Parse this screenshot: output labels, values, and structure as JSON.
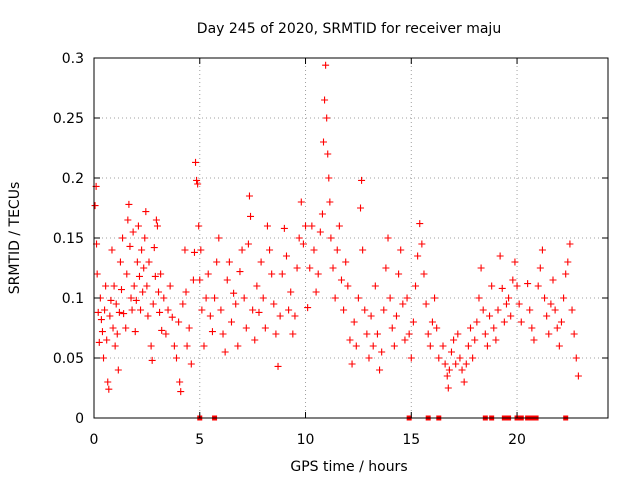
{
  "chart_data": {
    "type": "scatter",
    "title": "Day 245 of 2020, SRMTID for receiver maju",
    "xlabel": "GPS time / hours",
    "ylabel": "SRMTID / TECUs",
    "xlim": [
      0,
      24.3
    ],
    "ylim": [
      0,
      0.3
    ],
    "x_ticks": [
      0,
      5,
      10,
      15,
      20
    ],
    "x_tick_labels": [
      "0",
      "5",
      "10",
      "15",
      "20"
    ],
    "y_ticks": [
      0,
      0.05,
      0.1,
      0.15,
      0.2,
      0.25,
      0.3
    ],
    "y_tick_labels": [
      "0",
      "0.05",
      "0.1",
      "0.15",
      "0.2",
      "0.25",
      "0.3"
    ],
    "grid": true,
    "marker": "plus",
    "series_color": "#ff0000",
    "series": [
      {
        "name": "SRMTID",
        "points": [
          [
            0.05,
            0.177
          ],
          [
            0.1,
            0.193
          ],
          [
            0.12,
            0.145
          ],
          [
            0.15,
            0.12
          ],
          [
            0.2,
            0.088
          ],
          [
            0.25,
            0.063
          ],
          [
            0.3,
            0.1
          ],
          [
            0.35,
            0.082
          ],
          [
            0.4,
            0.072
          ],
          [
            0.45,
            0.05
          ],
          [
            0.5,
            0.09
          ],
          [
            0.55,
            0.11
          ],
          [
            0.6,
            0.065
          ],
          [
            0.65,
            0.03
          ],
          [
            0.7,
            0.024
          ],
          [
            0.75,
            0.085
          ],
          [
            0.8,
            0.098
          ],
          [
            0.85,
            0.14
          ],
          [
            0.9,
            0.075
          ],
          [
            0.95,
            0.11
          ],
          [
            1.0,
            0.06
          ],
          [
            1.05,
            0.095
          ],
          [
            1.1,
            0.07
          ],
          [
            1.15,
            0.04
          ],
          [
            1.2,
            0.088
          ],
          [
            1.25,
            0.13
          ],
          [
            1.3,
            0.107
          ],
          [
            1.35,
            0.15
          ],
          [
            1.4,
            0.087
          ],
          [
            1.5,
            0.075
          ],
          [
            1.55,
            0.12
          ],
          [
            1.6,
            0.165
          ],
          [
            1.65,
            0.178
          ],
          [
            1.7,
            0.143
          ],
          [
            1.75,
            0.1
          ],
          [
            1.8,
            0.09
          ],
          [
            1.85,
            0.155
          ],
          [
            1.9,
            0.11
          ],
          [
            1.95,
            0.072
          ],
          [
            2.0,
            0.098
          ],
          [
            2.05,
            0.13
          ],
          [
            2.1,
            0.16
          ],
          [
            2.15,
            0.118
          ],
          [
            2.2,
            0.09
          ],
          [
            2.25,
            0.14
          ],
          [
            2.3,
            0.105
          ],
          [
            2.35,
            0.125
          ],
          [
            2.4,
            0.15
          ],
          [
            2.45,
            0.172
          ],
          [
            2.5,
            0.11
          ],
          [
            2.55,
            0.085
          ],
          [
            2.6,
            0.13
          ],
          [
            2.7,
            0.06
          ],
          [
            2.75,
            0.048
          ],
          [
            2.8,
            0.095
          ],
          [
            2.85,
            0.142
          ],
          [
            2.9,
            0.118
          ],
          [
            2.95,
            0.165
          ],
          [
            3.0,
            0.16
          ],
          [
            3.05,
            0.105
          ],
          [
            3.1,
            0.088
          ],
          [
            3.15,
            0.12
          ],
          [
            3.2,
            0.073
          ],
          [
            3.3,
            0.1
          ],
          [
            3.4,
            0.07
          ],
          [
            3.5,
            0.09
          ],
          [
            3.6,
            0.11
          ],
          [
            3.7,
            0.084
          ],
          [
            3.8,
            0.06
          ],
          [
            3.9,
            0.05
          ],
          [
            4.0,
            0.08
          ],
          [
            4.05,
            0.03
          ],
          [
            4.1,
            0.022
          ],
          [
            4.2,
            0.095
          ],
          [
            4.3,
            0.14
          ],
          [
            4.35,
            0.105
          ],
          [
            4.4,
            0.06
          ],
          [
            4.5,
            0.075
          ],
          [
            4.6,
            0.045
          ],
          [
            4.7,
            0.115
          ],
          [
            4.75,
            0.138
          ],
          [
            4.8,
            0.213
          ],
          [
            4.85,
            0.198
          ],
          [
            4.9,
            0.195
          ],
          [
            4.95,
            0.16
          ],
          [
            5.0,
            0.115
          ],
          [
            5.05,
            0.14
          ],
          [
            5.1,
            0.09
          ],
          [
            5.2,
            0.06
          ],
          [
            5.3,
            0.1
          ],
          [
            5.4,
            0.12
          ],
          [
            5.5,
            0.085
          ],
          [
            5.6,
            0.072
          ],
          [
            5.7,
            0.1
          ],
          [
            5.8,
            0.13
          ],
          [
            5.9,
            0.15
          ],
          [
            6.0,
            0.09
          ],
          [
            6.1,
            0.07
          ],
          [
            6.2,
            0.055
          ],
          [
            6.3,
            0.115
          ],
          [
            6.4,
            0.13
          ],
          [
            6.5,
            0.08
          ],
          [
            6.6,
            0.104
          ],
          [
            6.7,
            0.095
          ],
          [
            6.8,
            0.06
          ],
          [
            6.9,
            0.122
          ],
          [
            7.0,
            0.14
          ],
          [
            7.1,
            0.1
          ],
          [
            7.2,
            0.075
          ],
          [
            7.3,
            0.145
          ],
          [
            7.35,
            0.185
          ],
          [
            7.4,
            0.168
          ],
          [
            7.5,
            0.09
          ],
          [
            7.6,
            0.065
          ],
          [
            7.7,
            0.11
          ],
          [
            7.8,
            0.088
          ],
          [
            7.9,
            0.13
          ],
          [
            8.0,
            0.1
          ],
          [
            8.1,
            0.075
          ],
          [
            8.2,
            0.16
          ],
          [
            8.3,
            0.14
          ],
          [
            8.4,
            0.12
          ],
          [
            8.5,
            0.095
          ],
          [
            8.6,
            0.07
          ],
          [
            8.7,
            0.043
          ],
          [
            8.8,
            0.085
          ],
          [
            8.9,
            0.12
          ],
          [
            9.0,
            0.158
          ],
          [
            9.1,
            0.135
          ],
          [
            9.2,
            0.09
          ],
          [
            9.3,
            0.105
          ],
          [
            9.4,
            0.07
          ],
          [
            9.5,
            0.085
          ],
          [
            9.6,
            0.125
          ],
          [
            9.7,
            0.15
          ],
          [
            9.8,
            0.18
          ],
          [
            9.9,
            0.145
          ],
          [
            10.0,
            0.16
          ],
          [
            10.1,
            0.092
          ],
          [
            10.2,
            0.125
          ],
          [
            10.3,
            0.16
          ],
          [
            10.4,
            0.14
          ],
          [
            10.5,
            0.105
          ],
          [
            10.6,
            0.12
          ],
          [
            10.7,
            0.155
          ],
          [
            10.8,
            0.17
          ],
          [
            10.85,
            0.23
          ],
          [
            10.9,
            0.265
          ],
          [
            10.95,
            0.294
          ],
          [
            11.0,
            0.25
          ],
          [
            11.05,
            0.22
          ],
          [
            11.1,
            0.2
          ],
          [
            11.15,
            0.18
          ],
          [
            11.2,
            0.15
          ],
          [
            11.3,
            0.125
          ],
          [
            11.4,
            0.1
          ],
          [
            11.5,
            0.14
          ],
          [
            11.6,
            0.16
          ],
          [
            11.7,
            0.115
          ],
          [
            11.8,
            0.09
          ],
          [
            11.9,
            0.13
          ],
          [
            12.0,
            0.11
          ],
          [
            12.1,
            0.065
          ],
          [
            12.2,
            0.045
          ],
          [
            12.3,
            0.08
          ],
          [
            12.4,
            0.06
          ],
          [
            12.5,
            0.1
          ],
          [
            12.6,
            0.175
          ],
          [
            12.65,
            0.198
          ],
          [
            12.7,
            0.14
          ],
          [
            12.8,
            0.09
          ],
          [
            12.9,
            0.07
          ],
          [
            13.0,
            0.05
          ],
          [
            13.1,
            0.085
          ],
          [
            13.2,
            0.06
          ],
          [
            13.3,
            0.11
          ],
          [
            13.4,
            0.07
          ],
          [
            13.5,
            0.04
          ],
          [
            13.6,
            0.055
          ],
          [
            13.7,
            0.09
          ],
          [
            13.8,
            0.125
          ],
          [
            13.9,
            0.15
          ],
          [
            14.0,
            0.1
          ],
          [
            14.1,
            0.075
          ],
          [
            14.2,
            0.06
          ],
          [
            14.3,
            0.085
          ],
          [
            14.4,
            0.12
          ],
          [
            14.5,
            0.14
          ],
          [
            14.6,
            0.095
          ],
          [
            14.7,
            0.065
          ],
          [
            14.8,
            0.1
          ],
          [
            14.9,
            0.07
          ],
          [
            15.0,
            0.05
          ],
          [
            15.1,
            0.08
          ],
          [
            15.2,
            0.11
          ],
          [
            15.3,
            0.135
          ],
          [
            15.4,
            0.162
          ],
          [
            15.5,
            0.145
          ],
          [
            15.6,
            0.12
          ],
          [
            15.7,
            0.095
          ],
          [
            15.8,
            0.07
          ],
          [
            15.9,
            0.06
          ],
          [
            16.0,
            0.08
          ],
          [
            16.1,
            0.1
          ],
          [
            16.2,
            0.075
          ],
          [
            16.3,
            0.05
          ],
          [
            16.5,
            0.06
          ],
          [
            16.6,
            0.045
          ],
          [
            16.7,
            0.035
          ],
          [
            16.75,
            0.025
          ],
          [
            16.8,
            0.04
          ],
          [
            16.9,
            0.055
          ],
          [
            17.0,
            0.065
          ],
          [
            17.1,
            0.045
          ],
          [
            17.2,
            0.07
          ],
          [
            17.3,
            0.05
          ],
          [
            17.4,
            0.04
          ],
          [
            17.5,
            0.03
          ],
          [
            17.6,
            0.045
          ],
          [
            17.7,
            0.06
          ],
          [
            17.8,
            0.075
          ],
          [
            17.9,
            0.05
          ],
          [
            18.0,
            0.065
          ],
          [
            18.1,
            0.08
          ],
          [
            18.2,
            0.1
          ],
          [
            18.3,
            0.125
          ],
          [
            18.4,
            0.09
          ],
          [
            18.5,
            0.07
          ],
          [
            18.6,
            0.06
          ],
          [
            18.7,
            0.085
          ],
          [
            18.8,
            0.11
          ],
          [
            18.9,
            0.075
          ],
          [
            19.0,
            0.065
          ],
          [
            19.1,
            0.09
          ],
          [
            19.2,
            0.135
          ],
          [
            19.3,
            0.108
          ],
          [
            19.4,
            0.08
          ],
          [
            19.5,
            0.095
          ],
          [
            19.6,
            0.1
          ],
          [
            19.7,
            0.085
          ],
          [
            19.8,
            0.115
          ],
          [
            19.9,
            0.13
          ],
          [
            20.0,
            0.11
          ],
          [
            20.1,
            0.095
          ],
          [
            20.2,
            0.08
          ],
          [
            20.5,
            0.112
          ],
          [
            20.6,
            0.09
          ],
          [
            20.7,
            0.075
          ],
          [
            20.8,
            0.065
          ],
          [
            21.0,
            0.11
          ],
          [
            21.1,
            0.125
          ],
          [
            21.2,
            0.14
          ],
          [
            21.3,
            0.1
          ],
          [
            21.4,
            0.085
          ],
          [
            21.5,
            0.07
          ],
          [
            21.6,
            0.095
          ],
          [
            21.7,
            0.115
          ],
          [
            21.8,
            0.09
          ],
          [
            21.9,
            0.075
          ],
          [
            22.0,
            0.06
          ],
          [
            22.1,
            0.08
          ],
          [
            22.2,
            0.1
          ],
          [
            22.3,
            0.12
          ],
          [
            22.4,
            0.13
          ],
          [
            22.5,
            0.145
          ],
          [
            22.6,
            0.09
          ],
          [
            22.7,
            0.07
          ],
          [
            22.8,
            0.05
          ],
          [
            22.9,
            0.035
          ]
        ]
      }
    ],
    "zero_markers_x": [
      5.0,
      5.7,
      14.9,
      15.8,
      16.3,
      18.5,
      18.8,
      19.4,
      19.6,
      20.0,
      20.2,
      20.5,
      20.7,
      20.9,
      22.3
    ]
  }
}
